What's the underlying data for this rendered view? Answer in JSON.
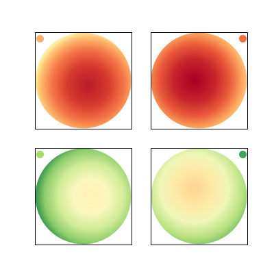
{
  "panels": [
    {
      "dot_color": "#fdae6b",
      "corner": "top-left"
    },
    {
      "dot_color": "#f46d43",
      "corner": "top-right"
    },
    {
      "dot_color": "#a6d96a",
      "corner": "top-left"
    },
    {
      "dot_color": "#3aa357",
      "corner": "top-right"
    }
  ]
}
